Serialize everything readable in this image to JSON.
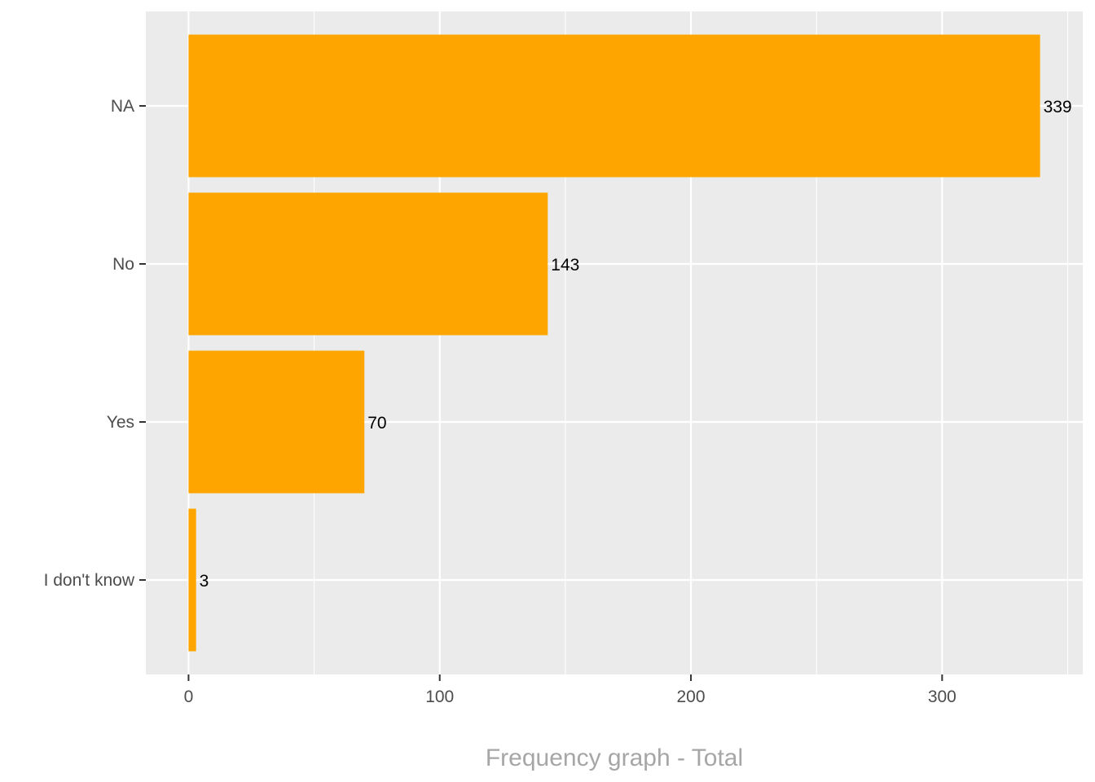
{
  "chart_data": {
    "type": "bar",
    "orientation": "horizontal",
    "categories": [
      "NA",
      "No",
      "Yes",
      "I don't know"
    ],
    "values": [
      339,
      143,
      70,
      3
    ],
    "data_labels": [
      "339",
      "143",
      "70",
      "3"
    ],
    "x_ticks": [
      0,
      100,
      200,
      300
    ],
    "x_tick_labels": [
      "0",
      "100",
      "200",
      "300"
    ],
    "xlim": [
      -17,
      356
    ],
    "xlabel": "Frequency graph - Total",
    "ylabel": "",
    "title": "",
    "grid": true,
    "legend": "none",
    "colors": {
      "bar": "#FFA500",
      "panel": "#EBEBEB",
      "grid": "#FFFFFF",
      "axis_text": "#4D4D4D",
      "axis_title": "#A6A6A6",
      "label": "#000000",
      "tick": "#333333"
    }
  }
}
